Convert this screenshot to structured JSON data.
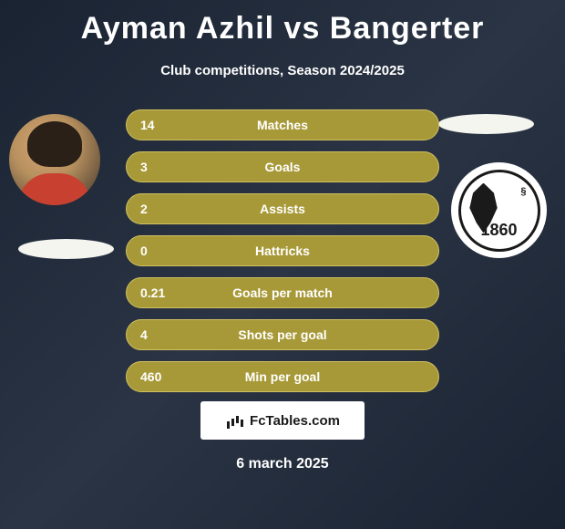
{
  "title": "Ayman Azhil vs Bangerter",
  "subtitle": "Club competitions, Season 2024/2025",
  "date": "6 march 2025",
  "branding": "FcTables.com",
  "logo_year": "1860",
  "colors": {
    "background": "#1a2332",
    "bar_fill": "#a89938",
    "bar_border": "#d0c060",
    "text_white": "#ffffff",
    "ellipse": "#f5f5f0"
  },
  "stats": [
    {
      "label": "Matches",
      "value": "14"
    },
    {
      "label": "Goals",
      "value": "3"
    },
    {
      "label": "Assists",
      "value": "2"
    },
    {
      "label": "Hattricks",
      "value": "0"
    },
    {
      "label": "Goals per match",
      "value": "0.21"
    },
    {
      "label": "Shots per goal",
      "value": "4"
    },
    {
      "label": "Min per goal",
      "value": "460"
    }
  ]
}
